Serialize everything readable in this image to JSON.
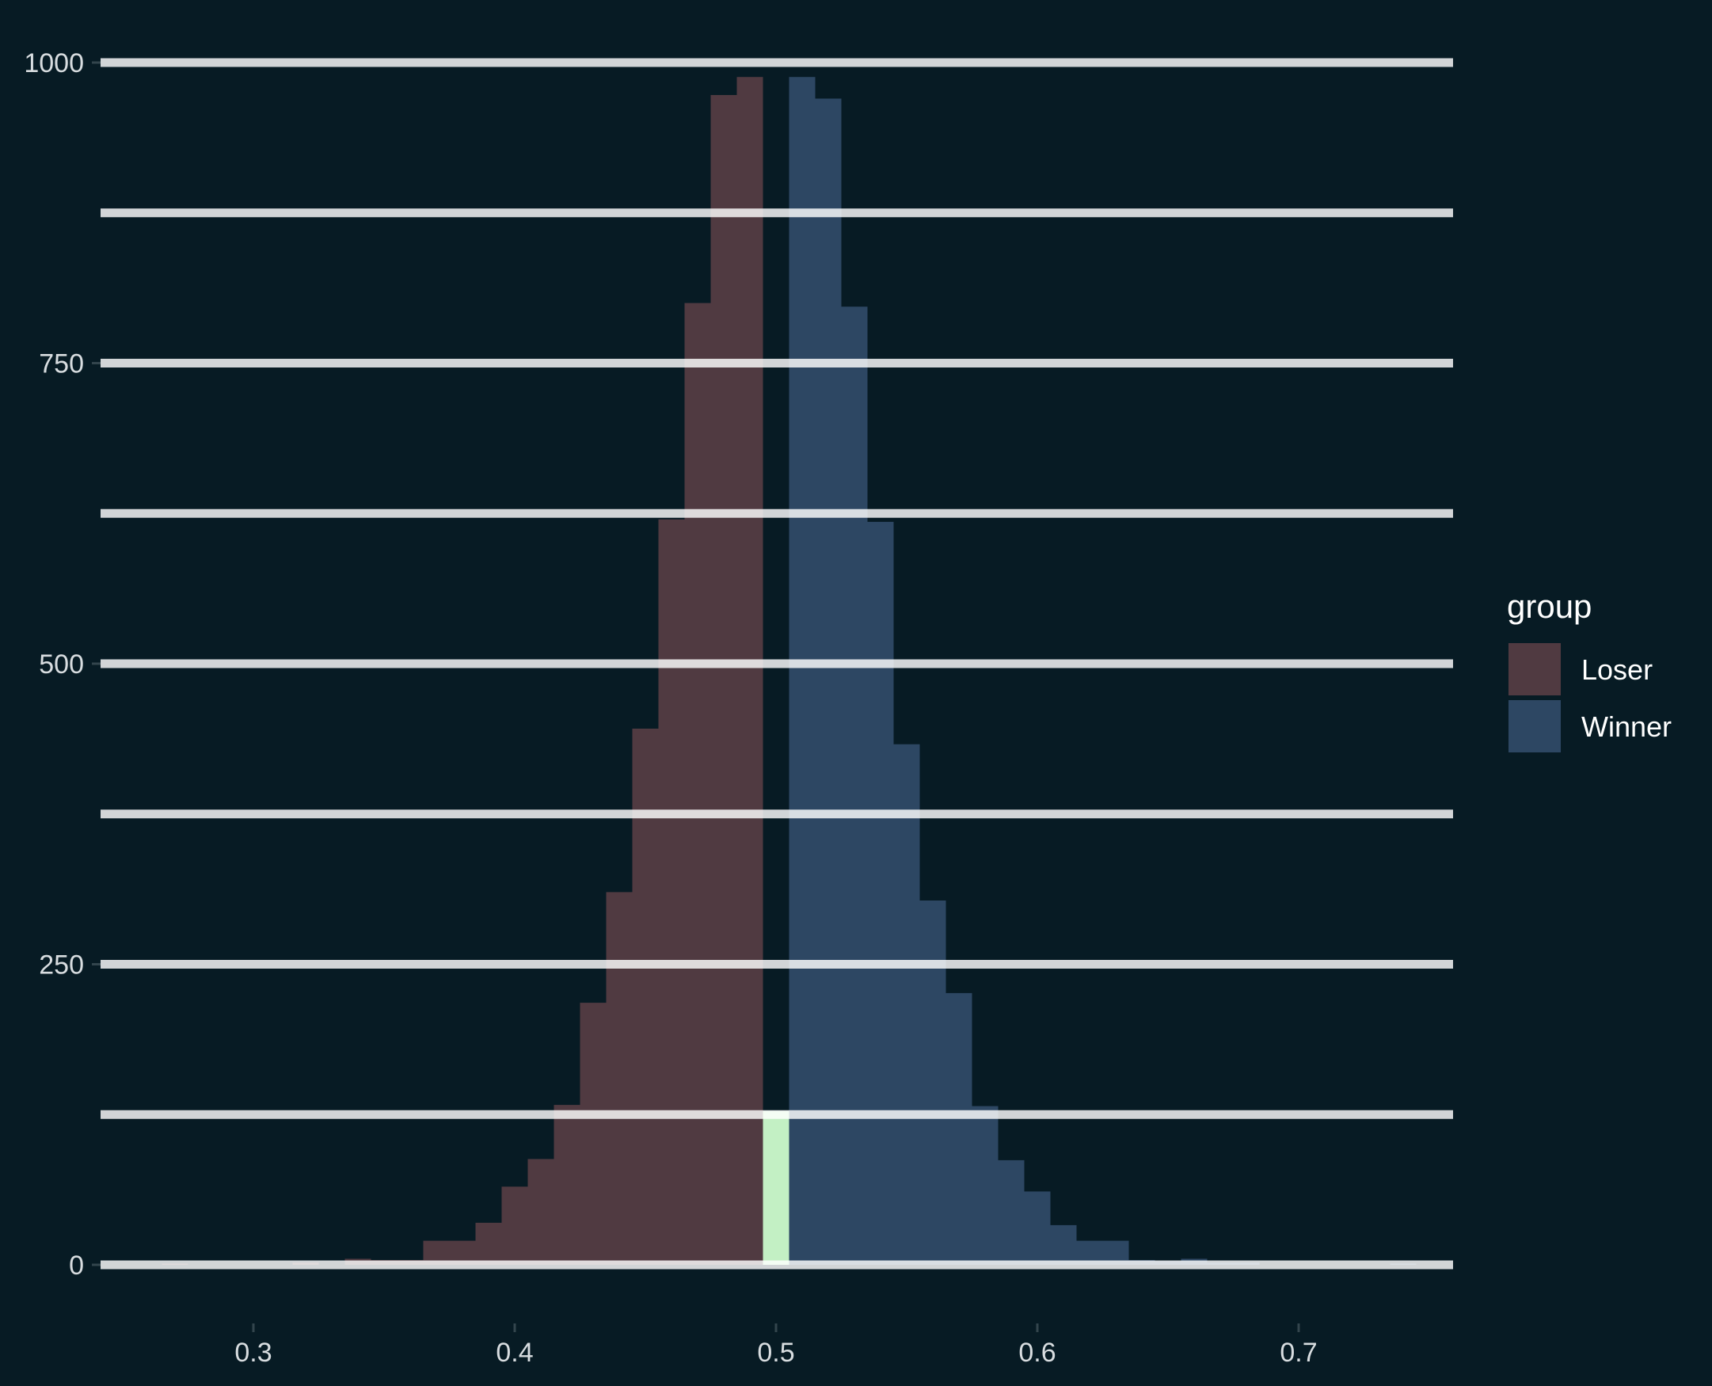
{
  "chart_data": {
    "type": "bar",
    "xlim": [
      0.24,
      0.76
    ],
    "ylim": [
      -60,
      1000
    ],
    "x_ticks": [
      "0.3",
      "0.4",
      "0.5",
      "0.6",
      "0.7"
    ],
    "y_ticks": [
      "1000",
      "750",
      "500",
      "250",
      "0"
    ],
    "gridlines_y": [
      0,
      125,
      250,
      375,
      500,
      625,
      750,
      875,
      1000
    ],
    "bin_width": 0.01,
    "legend": {
      "title": "group",
      "position": "right",
      "items": [
        "Loser",
        "Winner"
      ]
    },
    "series": [
      {
        "name": "Loser",
        "color": "#503a41",
        "bins": [
          {
            "x": 0.27,
            "value": 1
          },
          {
            "x": 0.32,
            "value": 2
          },
          {
            "x": 0.34,
            "value": 5
          },
          {
            "x": 0.35,
            "value": 4
          },
          {
            "x": 0.36,
            "value": 4
          },
          {
            "x": 0.37,
            "value": 20
          },
          {
            "x": 0.38,
            "value": 20
          },
          {
            "x": 0.39,
            "value": 35
          },
          {
            "x": 0.4,
            "value": 65
          },
          {
            "x": 0.41,
            "value": 88
          },
          {
            "x": 0.42,
            "value": 133
          },
          {
            "x": 0.43,
            "value": 218
          },
          {
            "x": 0.44,
            "value": 310
          },
          {
            "x": 0.45,
            "value": 446
          },
          {
            "x": 0.46,
            "value": 620
          },
          {
            "x": 0.47,
            "value": 800
          },
          {
            "x": 0.48,
            "value": 973
          },
          {
            "x": 0.49,
            "value": 988
          }
        ]
      },
      {
        "name": "",
        "color": "#c3f0c4",
        "bins": [
          {
            "x": 0.5,
            "value": 128
          }
        ]
      },
      {
        "name": "Winner",
        "color": "#2d4763",
        "bins": [
          {
            "x": 0.51,
            "value": 988
          },
          {
            "x": 0.52,
            "value": 970
          },
          {
            "x": 0.53,
            "value": 797
          },
          {
            "x": 0.54,
            "value": 618
          },
          {
            "x": 0.55,
            "value": 433
          },
          {
            "x": 0.56,
            "value": 303
          },
          {
            "x": 0.57,
            "value": 226
          },
          {
            "x": 0.58,
            "value": 132
          },
          {
            "x": 0.59,
            "value": 87
          },
          {
            "x": 0.6,
            "value": 61
          },
          {
            "x": 0.61,
            "value": 33
          },
          {
            "x": 0.62,
            "value": 20
          },
          {
            "x": 0.63,
            "value": 20
          },
          {
            "x": 0.64,
            "value": 4
          },
          {
            "x": 0.65,
            "value": 3
          },
          {
            "x": 0.66,
            "value": 5
          },
          {
            "x": 0.67,
            "value": 2
          },
          {
            "x": 0.68,
            "value": 2
          },
          {
            "x": 0.74,
            "value": 1
          }
        ]
      }
    ]
  }
}
